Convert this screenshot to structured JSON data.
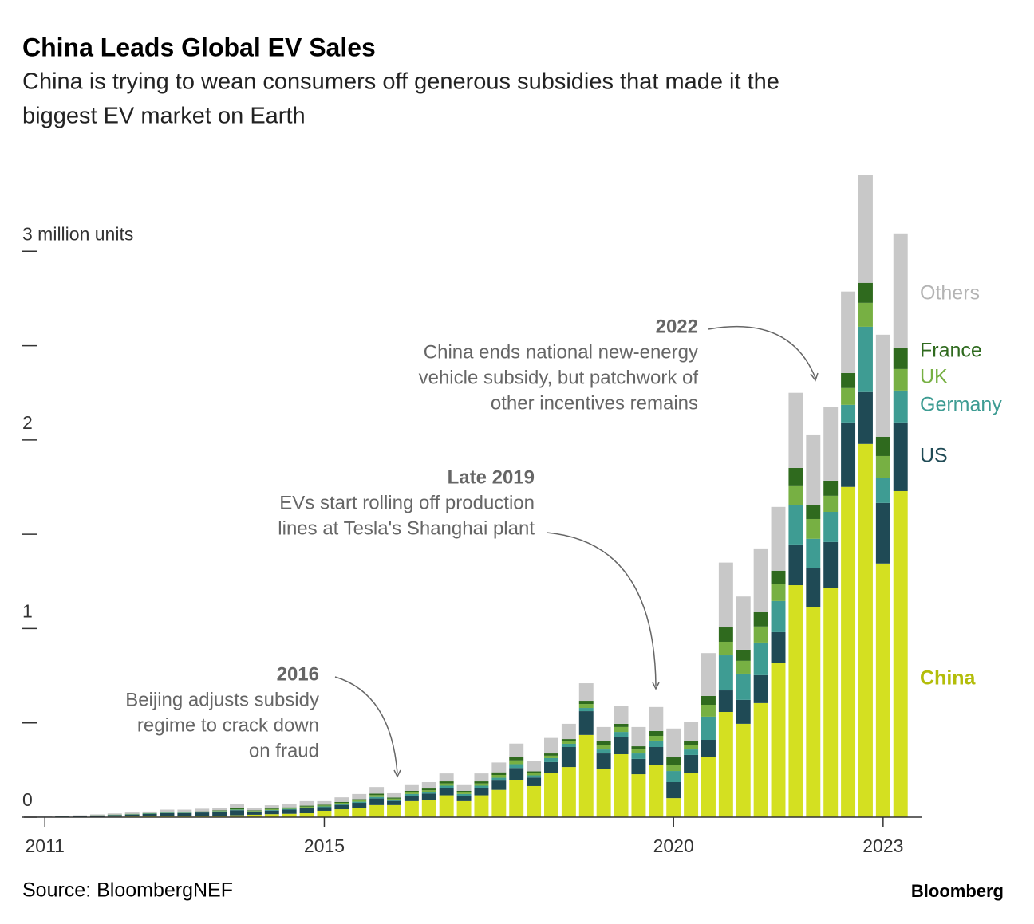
{
  "chart_data": {
    "type": "stacked-bar",
    "title": "China Leads Global EV Sales",
    "subtitle": [
      "China is trying to wean consumers off generous subsidies that made it the",
      "biggest EV market on Earth"
    ],
    "x": [
      2011,
      2011.25,
      2011.5,
      2011.75,
      2012,
      2012.25,
      2012.5,
      2012.75,
      2013,
      2013.25,
      2013.5,
      2013.75,
      2014,
      2014.25,
      2014.5,
      2014.75,
      2015,
      2015.25,
      2015.5,
      2015.75,
      2016,
      2016.25,
      2016.5,
      2016.75,
      2017,
      2017.25,
      2017.5,
      2017.75,
      2018,
      2018.25,
      2018.5,
      2018.75,
      2019,
      2019.25,
      2019.5,
      2019.75,
      2020,
      2020.25,
      2020.5,
      2020.75,
      2021,
      2021.25,
      2021.5,
      2021.75,
      2022,
      2022.25,
      2022.5,
      2022.75,
      2023,
      2023.25
    ],
    "series": [
      {
        "name": "China",
        "color": "#d4e021",
        "label_color": "#b3bd0a",
        "values": [
          0.001,
          0.001,
          0.001,
          0.002,
          0.003,
          0.004,
          0.005,
          0.006,
          0.006,
          0.007,
          0.008,
          0.01,
          0.013,
          0.016,
          0.018,
          0.021,
          0.034,
          0.042,
          0.049,
          0.064,
          0.064,
          0.085,
          0.093,
          0.116,
          0.085,
          0.116,
          0.145,
          0.195,
          0.165,
          0.233,
          0.266,
          0.436,
          0.254,
          0.334,
          0.228,
          0.279,
          0.101,
          0.233,
          0.321,
          0.558,
          0.495,
          0.605,
          0.816,
          1.23,
          1.112,
          1.214,
          1.751,
          1.979,
          1.345,
          1.729
        ]
      },
      {
        "name": "US",
        "color": "#1f4a55",
        "label_color": "#1f4a55",
        "values": [
          0.002,
          0.003,
          0.004,
          0.006,
          0.008,
          0.01,
          0.012,
          0.016,
          0.016,
          0.018,
          0.02,
          0.027,
          0.015,
          0.019,
          0.022,
          0.026,
          0.019,
          0.023,
          0.027,
          0.035,
          0.022,
          0.029,
          0.032,
          0.039,
          0.029,
          0.039,
          0.049,
          0.066,
          0.045,
          0.059,
          0.106,
          0.126,
          0.084,
          0.089,
          0.081,
          0.093,
          0.085,
          0.097,
          0.089,
          0.114,
          0.127,
          0.148,
          0.165,
          0.216,
          0.211,
          0.245,
          0.342,
          0.275,
          0.321,
          0.364
        ]
      },
      {
        "name": "Germany",
        "color": "#3e9c93",
        "label_color": "#3e9c93",
        "values": [
          0.0,
          0.0,
          0.001,
          0.001,
          0.001,
          0.001,
          0.002,
          0.002,
          0.002,
          0.002,
          0.003,
          0.003,
          0.002,
          0.003,
          0.004,
          0.004,
          0.004,
          0.005,
          0.006,
          0.008,
          0.006,
          0.009,
          0.009,
          0.012,
          0.009,
          0.012,
          0.015,
          0.02,
          0.012,
          0.021,
          0.017,
          0.017,
          0.021,
          0.029,
          0.029,
          0.034,
          0.059,
          0.029,
          0.123,
          0.186,
          0.139,
          0.173,
          0.165,
          0.207,
          0.153,
          0.16,
          0.093,
          0.346,
          0.131,
          0.169
        ]
      },
      {
        "name": "UK",
        "color": "#77b043",
        "label_color": "#77b043",
        "values": [
          0.0,
          0.0,
          0.0,
          0.0,
          0.001,
          0.001,
          0.001,
          0.001,
          0.001,
          0.001,
          0.002,
          0.002,
          0.003,
          0.004,
          0.004,
          0.005,
          0.005,
          0.006,
          0.007,
          0.01,
          0.006,
          0.009,
          0.009,
          0.012,
          0.009,
          0.012,
          0.015,
          0.02,
          0.012,
          0.013,
          0.013,
          0.021,
          0.022,
          0.026,
          0.021,
          0.025,
          0.03,
          0.022,
          0.063,
          0.072,
          0.068,
          0.085,
          0.089,
          0.106,
          0.105,
          0.085,
          0.089,
          0.127,
          0.118,
          0.114
        ]
      },
      {
        "name": "France",
        "color": "#2f6a1e",
        "label_color": "#2f6a1e",
        "values": [
          0.0,
          0.001,
          0.001,
          0.001,
          0.001,
          0.002,
          0.002,
          0.003,
          0.003,
          0.003,
          0.003,
          0.005,
          0.003,
          0.004,
          0.004,
          0.005,
          0.004,
          0.005,
          0.006,
          0.008,
          0.006,
          0.008,
          0.009,
          0.011,
          0.008,
          0.011,
          0.014,
          0.019,
          0.009,
          0.012,
          0.012,
          0.017,
          0.021,
          0.017,
          0.017,
          0.026,
          0.042,
          0.021,
          0.047,
          0.076,
          0.059,
          0.076,
          0.072,
          0.093,
          0.072,
          0.08,
          0.08,
          0.106,
          0.102,
          0.114
        ]
      },
      {
        "name": "Others",
        "color": "#c8c8c8",
        "label_color": "#b4b4b4",
        "values": [
          0.002,
          0.003,
          0.003,
          0.005,
          0.006,
          0.007,
          0.008,
          0.012,
          0.012,
          0.014,
          0.014,
          0.021,
          0.014,
          0.017,
          0.02,
          0.024,
          0.019,
          0.024,
          0.028,
          0.035,
          0.023,
          0.03,
          0.034,
          0.042,
          0.03,
          0.042,
          0.052,
          0.07,
          0.057,
          0.082,
          0.081,
          0.093,
          0.076,
          0.093,
          0.102,
          0.127,
          0.153,
          0.105,
          0.227,
          0.344,
          0.282,
          0.338,
          0.338,
          0.398,
          0.372,
          0.389,
          0.432,
          0.571,
          0.541,
          0.605
        ]
      }
    ],
    "ylim": [
      0,
      3.5
    ],
    "yticks": [
      0,
      1,
      2,
      {
        "value": 3,
        "label": "3 million units"
      }
    ],
    "minor_yticks": [
      0.5,
      1.5,
      2.5
    ],
    "xlim": [
      2010.7,
      2023.55
    ],
    "xticks": [
      2011,
      2015,
      2020,
      2023
    ],
    "annotations": [
      {
        "title": "2016",
        "lines": [
          "Beijing adjusts subsidy",
          "regime to crack down",
          "on fraud"
        ]
      },
      {
        "title": "Late 2019",
        "lines": [
          "EVs start rolling off production",
          "lines at Tesla's Shanghai plant"
        ]
      },
      {
        "title": "2022",
        "lines": [
          "China ends national new-energy",
          "vehicle subsidy, but patchwork of",
          "other incentives remains"
        ]
      }
    ],
    "source": "Source: BloombergNEF",
    "brand": "Bloomberg"
  }
}
